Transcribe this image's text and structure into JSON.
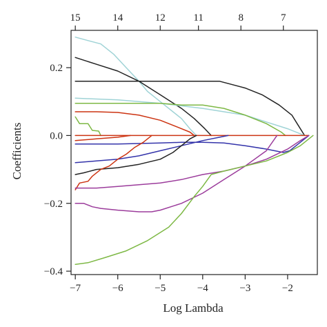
{
  "chart_data": {
    "type": "line",
    "title": "",
    "xlabel": "Log Lambda",
    "ylabel": "Coefficients",
    "xlim": [
      -7.1,
      -1.3
    ],
    "ylim": [
      -0.41,
      0.31
    ],
    "x_ticks": [
      -7,
      -6,
      -5,
      -4,
      -3,
      -2
    ],
    "x_tick_labels": [
      "−7",
      "−6",
      "−5",
      "−4",
      "−3",
      "−2"
    ],
    "y_ticks": [
      0.2,
      0.0,
      -0.2,
      -0.4
    ],
    "y_tick_labels": [
      "0.2",
      "0.0",
      "−0.2",
      "−0.4"
    ],
    "top_axis": {
      "label_title": "",
      "positions": [
        -7,
        -6,
        -5,
        -4.1,
        -3.1,
        -2.1
      ],
      "labels": [
        "15",
        "14",
        "12",
        "11",
        "8",
        "7"
      ]
    },
    "grid": false,
    "series": [
      {
        "color": "#9fd3d6",
        "points": [
          [
            -7,
            0.29
          ],
          [
            -6.7,
            0.28
          ],
          [
            -6.4,
            0.27
          ],
          [
            -6.1,
            0.24
          ],
          [
            -5.8,
            0.2
          ],
          [
            -5.5,
            0.16
          ],
          [
            -5.3,
            0.13
          ],
          [
            -5.1,
            0.11
          ],
          [
            -4.9,
            0.09
          ],
          [
            -4.7,
            0.07
          ],
          [
            -4.5,
            0.05
          ],
          [
            -4.3,
            0.02
          ],
          [
            -4.15,
            0
          ]
        ]
      },
      {
        "color": "#222222",
        "points": [
          [
            -7,
            0.23
          ],
          [
            -6.5,
            0.21
          ],
          [
            -6,
            0.19
          ],
          [
            -5.5,
            0.16
          ],
          [
            -5,
            0.12
          ],
          [
            -4.5,
            0.08
          ],
          [
            -4.2,
            0.05
          ],
          [
            -3.95,
            0.02
          ],
          [
            -3.8,
            0
          ]
        ]
      },
      {
        "color": "#222222",
        "points": [
          [
            -7,
            0.16
          ],
          [
            -6,
            0.16
          ],
          [
            -5,
            0.16
          ],
          [
            -4,
            0.16
          ],
          [
            -3.6,
            0.16
          ],
          [
            -3.3,
            0.15
          ],
          [
            -3,
            0.14
          ],
          [
            -2.6,
            0.12
          ],
          [
            -2.2,
            0.09
          ],
          [
            -1.9,
            0.06
          ],
          [
            -1.75,
            0.03
          ],
          [
            -1.6,
            0
          ]
        ]
      },
      {
        "color": "#9fd3d6",
        "points": [
          [
            -7,
            0.11
          ],
          [
            -6,
            0.105
          ],
          [
            -5,
            0.095
          ],
          [
            -4,
            0.08
          ],
          [
            -3,
            0.06
          ],
          [
            -2.5,
            0.04
          ],
          [
            -2,
            0.02
          ],
          [
            -1.6,
            0
          ]
        ]
      },
      {
        "color": "#7db844",
        "points": [
          [
            -7,
            0.095
          ],
          [
            -6,
            0.095
          ],
          [
            -5,
            0.095
          ],
          [
            -4.5,
            0.09
          ],
          [
            -4,
            0.09
          ],
          [
            -3.5,
            0.08
          ],
          [
            -3,
            0.06
          ],
          [
            -2.5,
            0.035
          ],
          [
            -2.15,
            0.01
          ],
          [
            -2.05,
            0
          ]
        ]
      },
      {
        "color": "#cc3311",
        "points": [
          [
            -7,
            0.07
          ],
          [
            -6.5,
            0.07
          ],
          [
            -6,
            0.068
          ],
          [
            -5.5,
            0.06
          ],
          [
            -5,
            0.045
          ],
          [
            -4.6,
            0.025
          ],
          [
            -4.3,
            0.01
          ],
          [
            -4.2,
            0
          ]
        ]
      },
      {
        "color": "#7db844",
        "points": [
          [
            -7,
            0.055
          ],
          [
            -6.9,
            0.035
          ],
          [
            -6.7,
            0.035
          ],
          [
            -6.6,
            0.015
          ],
          [
            -6.45,
            0.013
          ],
          [
            -6.4,
            0
          ]
        ]
      },
      {
        "color": "#cc3311",
        "points": [
          [
            -7,
            0
          ],
          [
            -6,
            0
          ],
          [
            -5,
            0
          ],
          [
            -4,
            0
          ],
          [
            -3,
            0
          ],
          [
            -2,
            0
          ],
          [
            -1.5,
            0
          ]
        ]
      },
      {
        "color": "#cc3311",
        "points": [
          [
            -7,
            -0.015
          ],
          [
            -6.5,
            -0.01
          ],
          [
            -6,
            -0.005
          ],
          [
            -5.7,
            0
          ]
        ]
      },
      {
        "color": "#3333aa",
        "points": [
          [
            -7,
            -0.025
          ],
          [
            -6,
            -0.025
          ],
          [
            -5,
            -0.022
          ],
          [
            -4.5,
            -0.02
          ],
          [
            -4,
            -0.02
          ],
          [
            -3.5,
            -0.022
          ],
          [
            -3,
            -0.03
          ],
          [
            -2.5,
            -0.04
          ],
          [
            -2.1,
            -0.05
          ],
          [
            -1.95,
            -0.045
          ],
          [
            -1.75,
            -0.025
          ],
          [
            -1.5,
            0
          ]
        ]
      },
      {
        "color": "#3333aa",
        "points": [
          [
            -7,
            -0.08
          ],
          [
            -6.5,
            -0.075
          ],
          [
            -6,
            -0.07
          ],
          [
            -5.5,
            -0.06
          ],
          [
            -5,
            -0.045
          ],
          [
            -4.5,
            -0.03
          ],
          [
            -4,
            -0.015
          ],
          [
            -3.6,
            -0.005
          ],
          [
            -3.4,
            0
          ]
        ]
      },
      {
        "color": "#222222",
        "points": [
          [
            -7,
            -0.115
          ],
          [
            -6.8,
            -0.11
          ],
          [
            -6.5,
            -0.1
          ],
          [
            -6,
            -0.095
          ],
          [
            -5.5,
            -0.085
          ],
          [
            -5,
            -0.07
          ],
          [
            -4.7,
            -0.05
          ],
          [
            -4.5,
            -0.03
          ],
          [
            -4.3,
            -0.01
          ],
          [
            -4.15,
            0
          ]
        ]
      },
      {
        "color": "#cc3311",
        "points": [
          [
            -7,
            -0.16
          ],
          [
            -6.9,
            -0.14
          ],
          [
            -6.7,
            -0.135
          ],
          [
            -6.6,
            -0.12
          ],
          [
            -6.4,
            -0.1
          ],
          [
            -6.2,
            -0.09
          ],
          [
            -6,
            -0.07
          ],
          [
            -5.8,
            -0.055
          ],
          [
            -5.6,
            -0.035
          ],
          [
            -5.4,
            -0.02
          ],
          [
            -5.2,
            0
          ]
        ]
      },
      {
        "color": "#9b3b9b",
        "points": [
          [
            -7,
            -0.155
          ],
          [
            -6.5,
            -0.155
          ],
          [
            -6,
            -0.15
          ],
          [
            -5.5,
            -0.145
          ],
          [
            -5,
            -0.14
          ],
          [
            -4.5,
            -0.13
          ],
          [
            -4,
            -0.115
          ],
          [
            -3.5,
            -0.105
          ],
          [
            -3,
            -0.09
          ],
          [
            -2.5,
            -0.07
          ],
          [
            -2,
            -0.04
          ],
          [
            -1.7,
            -0.015
          ],
          [
            -1.5,
            0
          ]
        ]
      },
      {
        "color": "#9b3b9b",
        "points": [
          [
            -7,
            -0.2
          ],
          [
            -6.8,
            -0.2
          ],
          [
            -6.6,
            -0.21
          ],
          [
            -6.4,
            -0.215
          ],
          [
            -6,
            -0.22
          ],
          [
            -5.5,
            -0.225
          ],
          [
            -5.2,
            -0.225
          ],
          [
            -5,
            -0.22
          ],
          [
            -4.5,
            -0.2
          ],
          [
            -4,
            -0.17
          ],
          [
            -3.5,
            -0.13
          ],
          [
            -3,
            -0.09
          ],
          [
            -2.5,
            -0.045
          ],
          [
            -2.25,
            0
          ]
        ]
      },
      {
        "color": "#7db844",
        "points": [
          [
            -7,
            -0.38
          ],
          [
            -6.7,
            -0.375
          ],
          [
            -6.3,
            -0.36
          ],
          [
            -5.8,
            -0.34
          ],
          [
            -5.3,
            -0.31
          ],
          [
            -4.8,
            -0.27
          ],
          [
            -4.5,
            -0.23
          ],
          [
            -4.2,
            -0.18
          ],
          [
            -4,
            -0.15
          ],
          [
            -3.8,
            -0.115
          ],
          [
            -3.5,
            -0.105
          ],
          [
            -3,
            -0.09
          ],
          [
            -2.5,
            -0.075
          ],
          [
            -2,
            -0.05
          ],
          [
            -1.7,
            -0.03
          ],
          [
            -1.5,
            -0.01
          ],
          [
            -1.4,
            0
          ]
        ]
      }
    ]
  }
}
